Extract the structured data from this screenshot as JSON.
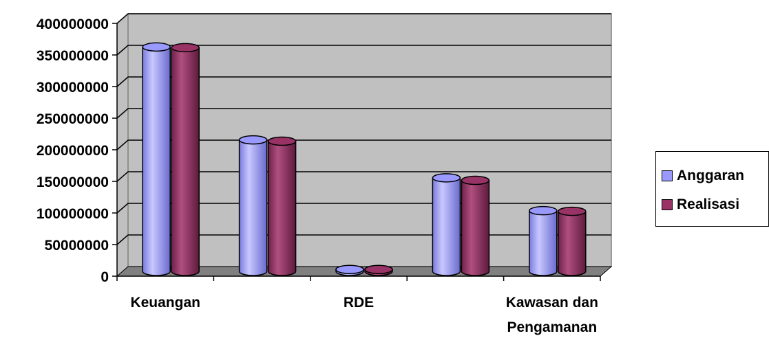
{
  "chart_data": {
    "type": "bar",
    "categories": [
      "Keuangan",
      "",
      "RDE",
      "",
      "Kawasan dan Pengamanan"
    ],
    "category_label_lines": [
      [
        "Keuangan"
      ],
      [],
      [
        "RDE"
      ],
      [],
      [
        "Kawasan dan",
        "Pengamanan"
      ]
    ],
    "series": [
      {
        "name": "Anggaran",
        "values": [
          355000000,
          208000000,
          3000000,
          148000000,
          96000000
        ]
      },
      {
        "name": "Realisasi",
        "values": [
          354000000,
          206000000,
          3000000,
          144000000,
          95000000
        ]
      }
    ],
    "ylim": [
      0,
      400000000
    ],
    "yticks": [
      "0",
      "50000000",
      "100000000",
      "150000000",
      "200000000",
      "250000000",
      "300000000",
      "350000000",
      "400000000"
    ],
    "grid": true,
    "legend_position": "right",
    "style": "3d-cylinder"
  },
  "colors": {
    "Anggaran": "#9999ff",
    "Realisasi": "#993366",
    "plot_background": "#c0c0c0",
    "floor": "#808080"
  },
  "legend": {
    "items": [
      {
        "label": "Anggaran",
        "color": "#9999ff"
      },
      {
        "label": "Realisasi",
        "color": "#993366"
      }
    ]
  }
}
